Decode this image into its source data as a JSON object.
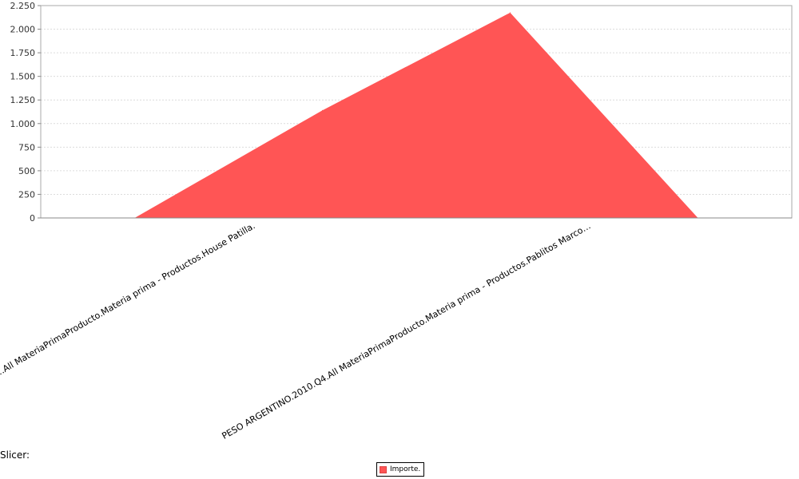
{
  "chart_data": {
    "type": "area",
    "categories": [
      "",
      "…All MateriaPrimaProducto.Materia prima - Productos.House Patilla.",
      "PESO ARGENTINO.2010.Q4.All MateriaPrimaProducto.Materia prima - Productos.Pablitos Marco…",
      ""
    ],
    "series": [
      {
        "name": "Importe.",
        "color": "#ff5555",
        "values": [
          0,
          1140,
          2175,
          0
        ]
      }
    ],
    "ylim": [
      0,
      2250
    ],
    "yticks": [
      0,
      250,
      500,
      750,
      1000,
      1250,
      1500,
      1750,
      2000,
      2250
    ],
    "ytick_labels": [
      "0",
      "250",
      "500",
      "750",
      "1.000",
      "1.250",
      "1.500",
      "1.750",
      "2.000",
      "2.250"
    ],
    "grid": true,
    "legend_position": "bottom-center"
  },
  "slicer_label": "Slicer:"
}
